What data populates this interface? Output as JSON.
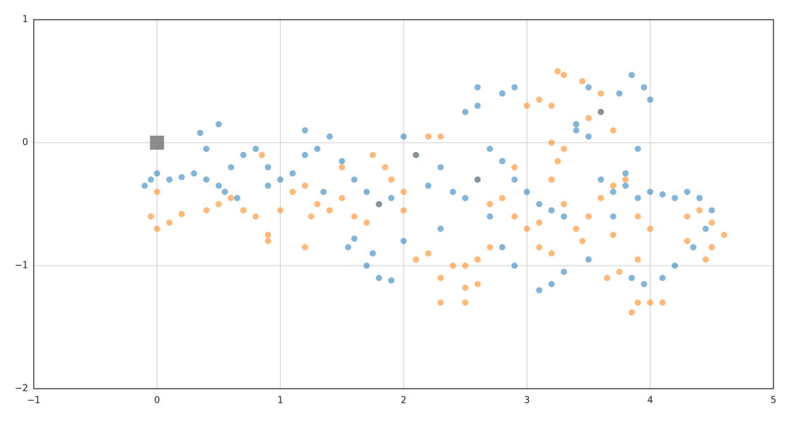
{
  "chart_data": {
    "type": "scatter",
    "xlim": [
      -1,
      5
    ],
    "ylim": [
      -2,
      1
    ],
    "xticks": [
      {
        "value": -1,
        "label": "−1"
      },
      0,
      1,
      2,
      3,
      4,
      5
    ],
    "yticks": [
      {
        "value": -2,
        "label": "−2"
      },
      {
        "value": -1,
        "label": "−1"
      },
      0,
      1
    ],
    "grid": true,
    "series": [
      {
        "color": "#ff7f0e",
        "marker": "circle",
        "x": [
          0,
          -0.05,
          0,
          0.1,
          0.2,
          0.4,
          0.5,
          0.6,
          0.7,
          0.8,
          0.9,
          1.0,
          1.1,
          1.2,
          1.3,
          1.4,
          1.5,
          1.6,
          1.7,
          1.8,
          1.9,
          2.0,
          2.1,
          2.2,
          2.3,
          1.2,
          0.9,
          2.1,
          2.2,
          2.3,
          2.4,
          2.5,
          2.6,
          2.7,
          2.6,
          2.5,
          2.3,
          2.5,
          2.7,
          2.8,
          2.9,
          3.0,
          3.1,
          3.2,
          3.25,
          3.3,
          3.4,
          3.5,
          3.6,
          3.7,
          3.8,
          3.9,
          4.0,
          3.1,
          3.2,
          3.45,
          3.7,
          3.75,
          3.65,
          3.9,
          3.9,
          3.85,
          4.0,
          4.1,
          4.3,
          4.4,
          4.5,
          4.6,
          4.5,
          4.45,
          4.3,
          3.0,
          3.1,
          3.2,
          3.3,
          3.25,
          3.45,
          3.6,
          3.6,
          3.5,
          3.7,
          3.2,
          3.3,
          2.9,
          2.6,
          1.75,
          1.85,
          1.5,
          0.85,
          2.0,
          1.25
        ],
        "values": [
          -0.4,
          -0.6,
          -0.7,
          -0.65,
          -0.58,
          -0.55,
          -0.5,
          -0.45,
          -0.55,
          -0.6,
          -0.75,
          -0.55,
          -0.4,
          -0.35,
          -0.5,
          -0.55,
          -0.45,
          -0.6,
          -0.65,
          -0.5,
          -0.3,
          -0.4,
          -0.1,
          0.05,
          0.05,
          -0.85,
          -0.8,
          -0.95,
          -0.9,
          -1.1,
          -1.0,
          -1.0,
          -0.95,
          -0.85,
          -1.15,
          -1.18,
          -1.3,
          -1.3,
          -0.5,
          -0.45,
          -0.6,
          -0.7,
          -0.65,
          -0.3,
          -0.15,
          -0.5,
          -0.7,
          -0.6,
          -0.45,
          -0.35,
          -0.3,
          -0.6,
          -0.7,
          -0.85,
          -0.9,
          -0.8,
          -0.75,
          -1.05,
          -1.1,
          -0.95,
          -1.3,
          -1.38,
          -1.3,
          -1.3,
          -0.6,
          -0.55,
          -0.65,
          -0.75,
          -0.85,
          -0.95,
          -0.8,
          0.3,
          0.35,
          0.3,
          0.55,
          0.58,
          0.5,
          0.4,
          0.25,
          0.2,
          0.1,
          0.0,
          -0.05,
          -0.2,
          -0.3,
          -0.1,
          -0.2,
          -0.2,
          -0.1,
          -0.55,
          -0.6
        ]
      },
      {
        "color": "#1f77b4",
        "marker": "circle",
        "x": [
          -0.1,
          -0.05,
          0,
          0.1,
          0.2,
          0.3,
          0.4,
          0.5,
          0.55,
          0.6,
          0.7,
          0.8,
          0.9,
          1.0,
          1.1,
          1.2,
          1.3,
          1.4,
          1.5,
          1.6,
          1.7,
          1.8,
          1.9,
          2.0,
          2.1,
          2.2,
          2.3,
          2.4,
          2.5,
          2.6,
          2.7,
          2.8,
          2.9,
          3.0,
          3.1,
          3.2,
          3.3,
          3.4,
          3.5,
          3.6,
          3.7,
          3.8,
          3.9,
          4.0,
          4.1,
          4.2,
          4.3,
          4.4,
          4.5,
          4.45,
          4.35,
          4.2,
          4.1,
          3.95,
          3.85,
          3.2,
          3.1,
          2.9,
          2.8,
          1.8,
          1.9,
          1.7,
          1.75,
          1.6,
          1.55,
          2.5,
          2.6,
          2.8,
          2.9,
          2.6,
          3.85,
          3.95,
          4.0,
          3.75,
          3.5,
          3.4,
          3.6,
          0.5,
          0.35,
          0.4,
          1.2,
          3.3,
          3.5,
          2.3,
          2.0,
          3.8,
          3.9,
          3.7,
          1.35,
          0.9,
          0.65,
          2.7
        ],
        "values": [
          -0.35,
          -0.3,
          -0.25,
          -0.3,
          -0.28,
          -0.25,
          -0.3,
          -0.35,
          -0.4,
          -0.2,
          -0.1,
          -0.05,
          -0.2,
          -0.3,
          -0.25,
          -0.1,
          -0.05,
          0.05,
          -0.15,
          -0.3,
          -0.4,
          -0.5,
          -0.45,
          0.05,
          -0.1,
          -0.35,
          -0.2,
          -0.4,
          -0.45,
          -0.3,
          -0.05,
          -0.15,
          -0.3,
          -0.4,
          -0.5,
          -0.55,
          -0.6,
          0.1,
          0.05,
          -0.3,
          -0.4,
          -0.35,
          -0.45,
          -0.4,
          -0.42,
          -0.45,
          -0.4,
          -0.45,
          -0.55,
          -0.7,
          -0.85,
          -1.0,
          -1.1,
          -1.15,
          -1.1,
          -1.15,
          -1.2,
          -1.0,
          -0.85,
          -1.1,
          -1.12,
          -1.0,
          -0.9,
          -0.78,
          -0.85,
          0.25,
          0.3,
          0.4,
          0.45,
          0.45,
          0.55,
          0.45,
          0.35,
          0.4,
          0.45,
          0.15,
          0.25,
          0.15,
          0.08,
          -0.05,
          0.1,
          -1.05,
          -0.95,
          -0.7,
          -0.8,
          -0.25,
          -0.05,
          -0.6,
          -0.4,
          -0.35,
          -0.45,
          -0.6
        ]
      },
      {
        "color": "#808080",
        "marker": "square",
        "x": [
          0
        ],
        "values": [
          0
        ]
      }
    ]
  }
}
